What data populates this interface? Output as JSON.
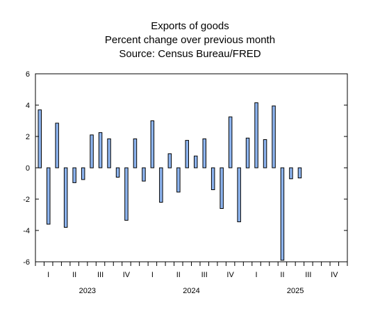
{
  "chart_data": {
    "type": "bar",
    "title": "Exports of goods",
    "subtitle": "Percent change over previous month",
    "source": "Source: Census Bureau/FRED",
    "xlabel": "",
    "ylabel": "",
    "ylim": [
      -6,
      6
    ],
    "yticks": [
      "6",
      "4",
      "2",
      "0",
      "-2",
      "-4",
      "-6"
    ],
    "bar_color": "#8db4ef",
    "bar_edge_color": "#000000",
    "grid": false,
    "legend": "none",
    "x_months": 36,
    "quarter_labels": [
      "I",
      "II",
      "III",
      "IV",
      "I",
      "II",
      "III",
      "IV",
      "I",
      "II",
      "III",
      "IV"
    ],
    "year_labels": [
      "2023",
      "2024",
      "2025"
    ],
    "series": [
      {
        "values": [
          3.7,
          -3.6,
          2.85,
          -3.8,
          -0.95,
          -0.75,
          2.1,
          2.25,
          1.85,
          -0.6,
          -3.35,
          1.85,
          -0.85,
          3.0,
          -2.2,
          0.9,
          -1.55,
          1.75,
          0.75,
          1.85,
          -1.4,
          -2.6,
          3.25,
          -3.45,
          1.9,
          4.15,
          1.8,
          3.95,
          -5.9,
          -0.7,
          -0.65
        ]
      }
    ]
  }
}
